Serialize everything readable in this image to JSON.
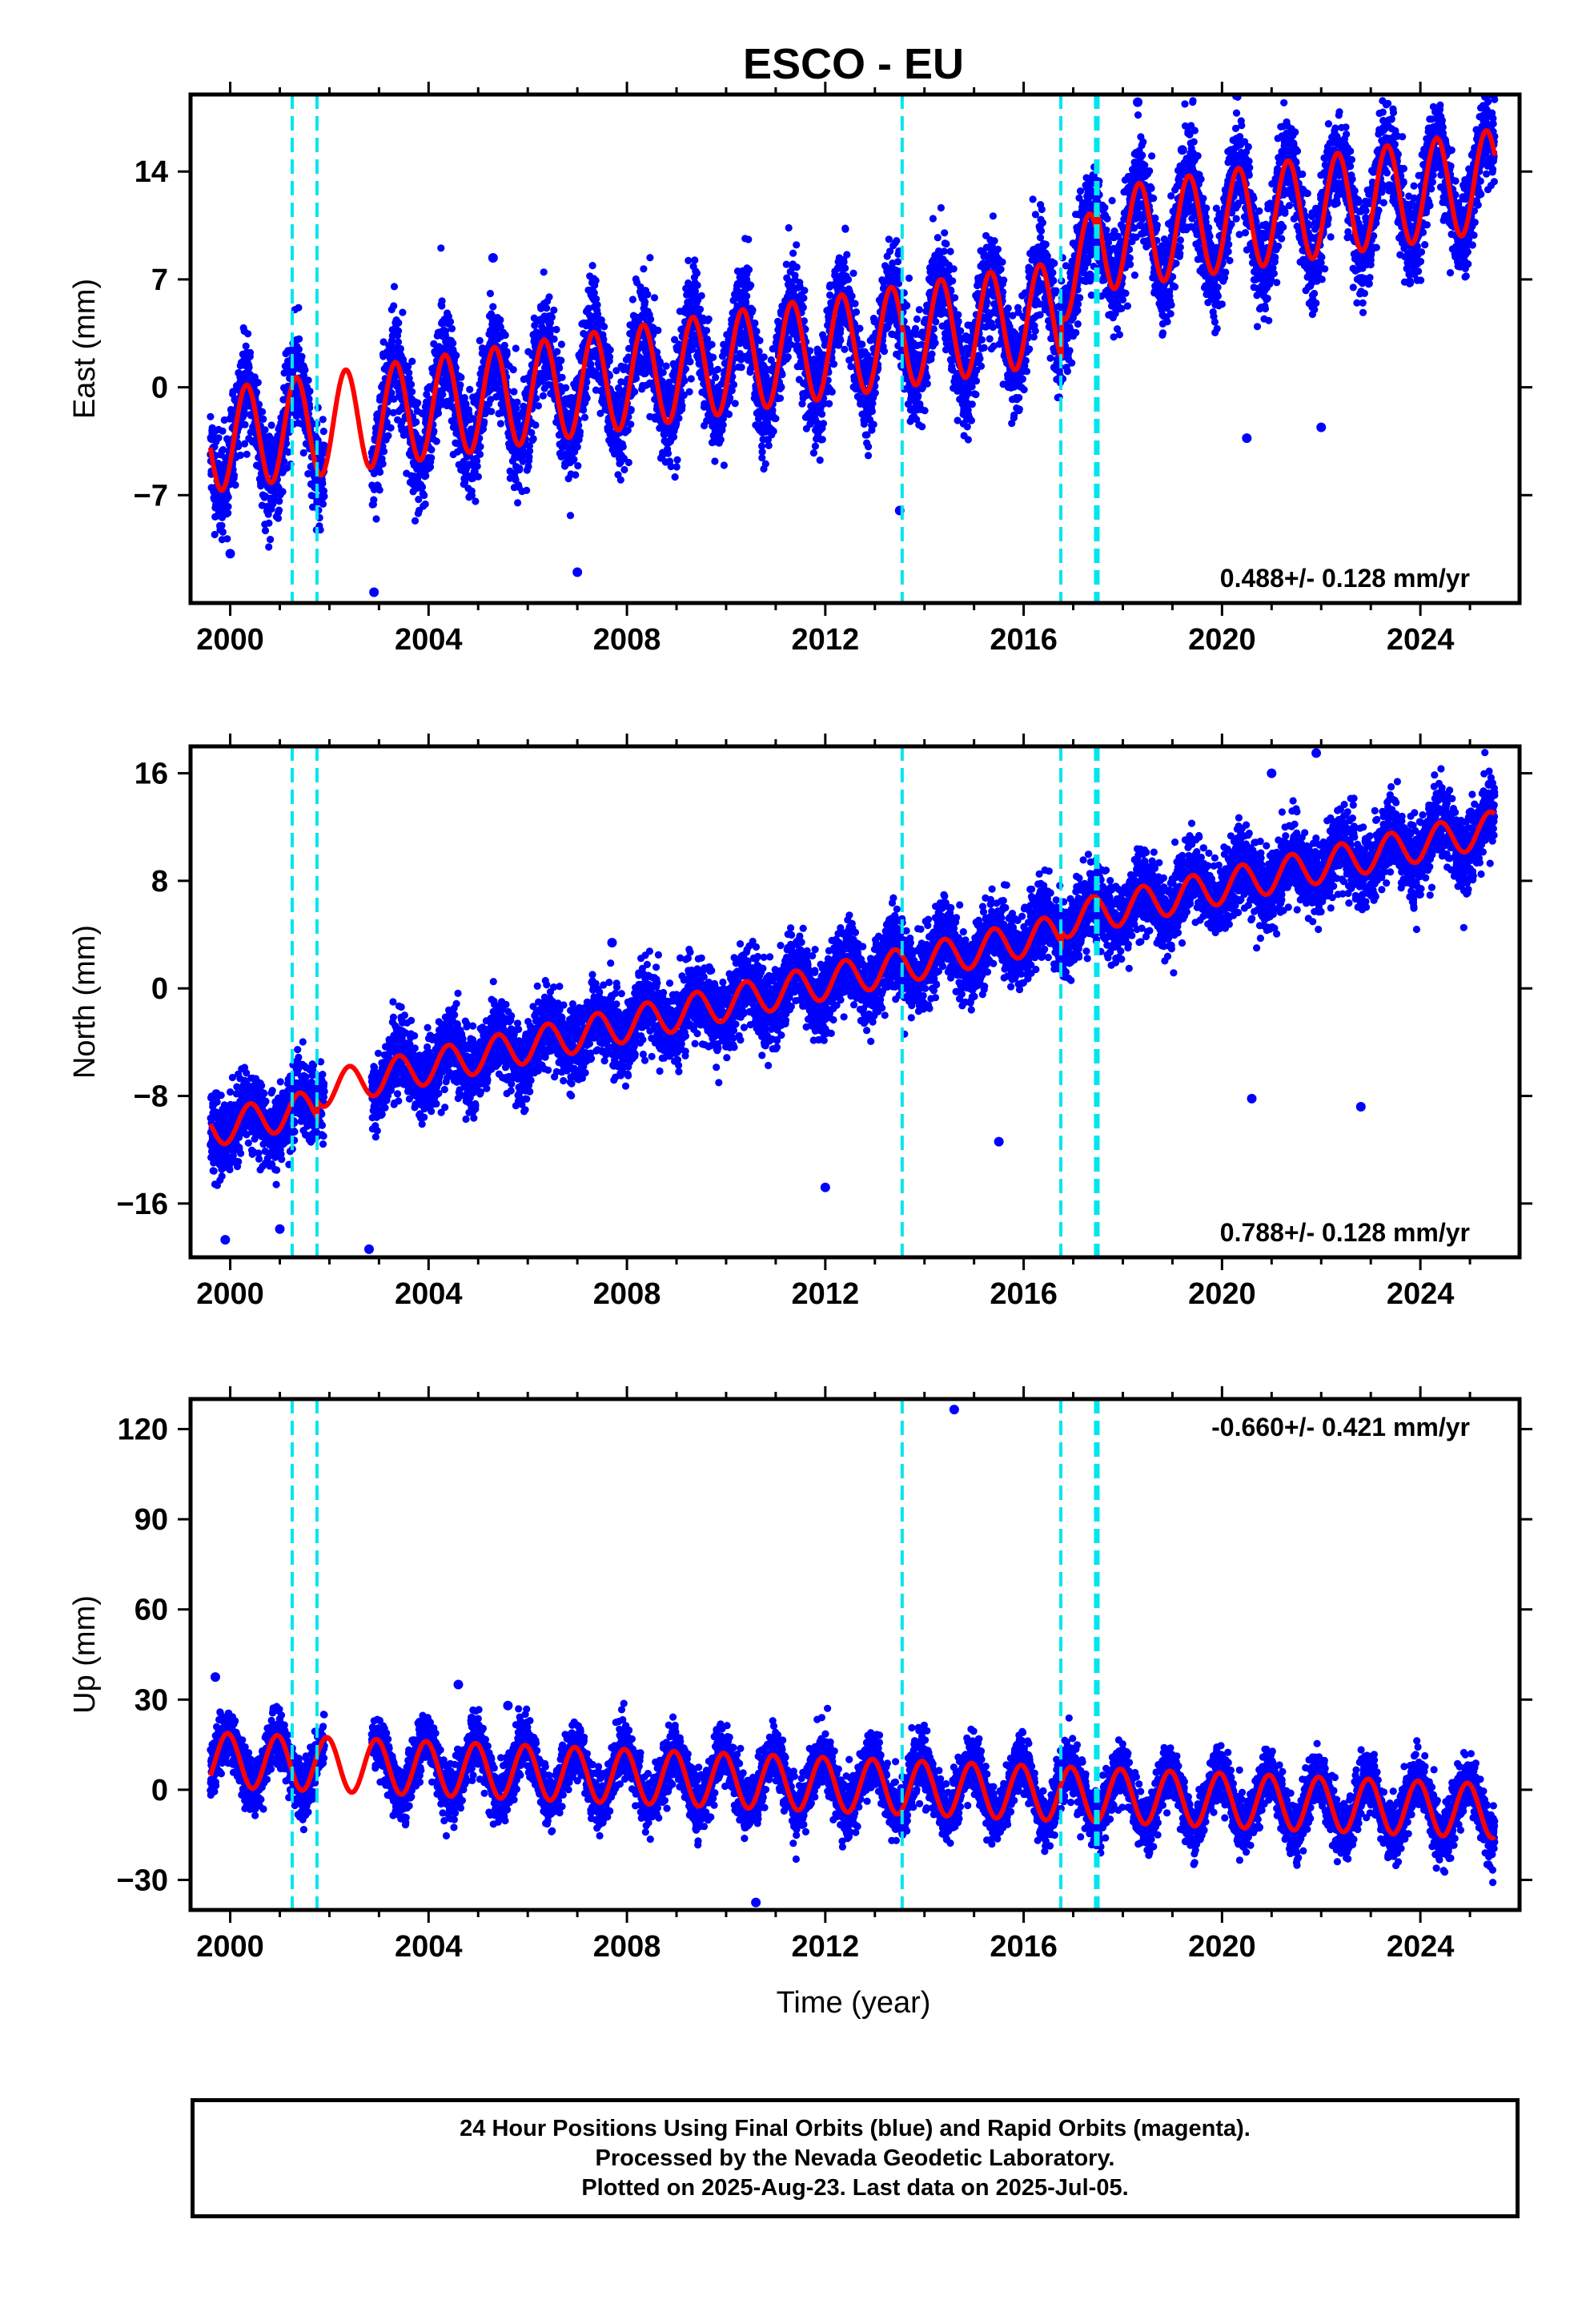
{
  "chart_data": {
    "title": "ESCO - EU",
    "type": "scatter",
    "xlabel": "Time (year)",
    "xlim": [
      1999.2,
      2026.0
    ],
    "xticks": [
      2000,
      2004,
      2008,
      2012,
      2016,
      2020,
      2024
    ],
    "steps": [
      2001.25,
      2001.75,
      2013.55,
      2016.75,
      2017.45,
      2017.5
    ],
    "colors": {
      "data": "#0000ff",
      "model": "#ff0000",
      "steps": "#00e5ee"
    },
    "panels": [
      {
        "component": "east",
        "ylabel": "East (mm)",
        "ylim": [
          -14,
          19
        ],
        "yticks": [
          -7,
          0,
          7,
          14
        ],
        "rate_label": "0.488+/- 0.128 mm/yr",
        "rate_position": "bottom-right",
        "model": {
          "start": 1999.6,
          "end": 2025.5,
          "offset": -3.5,
          "trend": 0.488,
          "amplitude": 3.3,
          "peak_phase": 0.33,
          "jumps": [
            {
              "year": 2016.76,
              "value": 2.8
            },
            {
              "year": 2017.45,
              "value": 1.5
            }
          ]
        },
        "scatter": {
          "noise": 1.6,
          "seed": 11
        },
        "outliers": [
          [
            2000.0,
            -10.8
          ],
          [
            2002.9,
            -13.3
          ],
          [
            2005.3,
            8.4
          ],
          [
            2007.0,
            -12.0
          ],
          [
            2013.5,
            -8.0
          ],
          [
            2018.3,
            18.5
          ],
          [
            2019.2,
            15.4
          ],
          [
            2020.5,
            -3.3
          ],
          [
            2022.0,
            -2.6
          ]
        ]
      },
      {
        "component": "north",
        "ylabel": "North (mm)",
        "ylim": [
          -20,
          18
        ],
        "yticks": [
          -16,
          -8,
          0,
          8,
          16
        ],
        "rate_label": "0.788+/- 0.128 mm/yr",
        "rate_position": "bottom-right",
        "model": {
          "start": 1999.6,
          "end": 2025.5,
          "offset": -10.5,
          "trend": 0.788,
          "amplitude": 1.3,
          "peak_phase": 0.4,
          "jumps": [
            {
              "year": 2001.75,
              "value": 1.2
            },
            {
              "year": 2016.76,
              "value": 0.8
            }
          ]
        },
        "scatter": {
          "noise": 1.4,
          "seed": 23
        },
        "outliers": [
          [
            1999.9,
            -18.7
          ],
          [
            2001.0,
            -17.9
          ],
          [
            2002.8,
            -19.4
          ],
          [
            2007.7,
            3.4
          ],
          [
            2012.0,
            -14.8
          ],
          [
            2015.5,
            -11.4
          ],
          [
            2020.6,
            -8.2
          ],
          [
            2021.0,
            16.0
          ],
          [
            2021.9,
            17.5
          ],
          [
            2022.8,
            -8.8
          ]
        ]
      },
      {
        "component": "up",
        "ylabel": "Up (mm)",
        "ylim": [
          -40,
          130
        ],
        "yticks": [
          -30,
          0,
          30,
          60,
          90,
          120
        ],
        "rate_label": "-0.660+/- 0.421 mm/yr",
        "rate_position": "top-right",
        "model": {
          "start": 1999.6,
          "end": 2025.5,
          "offset": 10.0,
          "trend": -0.66,
          "amplitude": 9.0,
          "peak_phase": 0.95,
          "jumps": []
        },
        "scatter": {
          "noise": 4.5,
          "seed": 37
        },
        "outliers": [
          [
            1999.7,
            37.5
          ],
          [
            2004.6,
            35.0
          ],
          [
            2005.6,
            28.0
          ],
          [
            2010.6,
            -37.5
          ],
          [
            2014.6,
            126.5
          ]
        ]
      }
    ]
  },
  "footer": {
    "line1": "24 Hour Positions Using Final Orbits (blue) and Rapid Orbits (magenta).",
    "line2": "Processed by the Nevada Geodetic Laboratory.",
    "line3": "Plotted on 2025-Aug-23. Last data on 2025-Jul-05."
  }
}
